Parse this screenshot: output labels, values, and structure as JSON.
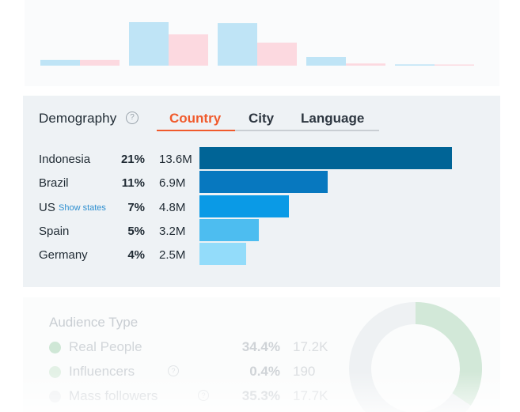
{
  "top_chart": {
    "series_colors": {
      "blue": "#bfe4f6",
      "pink": "#fcd9e0"
    },
    "pairs": [
      {
        "blue": 0.13,
        "pink": 0.13
      },
      {
        "blue": 1.0,
        "pink": 0.72
      },
      {
        "blue": 0.98,
        "pink": 0.53
      },
      {
        "blue": 0.2,
        "pink": 0.05
      },
      {
        "blue": 0.03,
        "pink": 0.02
      }
    ]
  },
  "demography": {
    "title": "Demography",
    "help_icon": "?",
    "tabs": [
      {
        "label": "Country",
        "active": true
      },
      {
        "label": "City",
        "active": false
      },
      {
        "label": "Language",
        "active": false
      }
    ],
    "show_states_label": "Show states",
    "chart_data": {
      "type": "bar",
      "categories": [
        "Indonesia",
        "Brazil",
        "US",
        "Spain",
        "Germany"
      ],
      "percent_labels": [
        "21%",
        "11%",
        "7%",
        "5%",
        "4%"
      ],
      "absolute_labels": [
        "13.6M",
        "6.9M",
        "4.8M",
        "3.2M",
        "2.5M"
      ],
      "values": [
        13.6,
        6.9,
        4.8,
        3.2,
        2.5
      ],
      "colors": [
        "#006496",
        "#0778bf",
        "#0a9ae6",
        "#4dbdf0",
        "#93dcfa"
      ]
    }
  },
  "audience": {
    "title": "Audience Type",
    "rows": [
      {
        "label": "Real People",
        "pct": "34.4%",
        "abs": "17.2K",
        "dot": "#cfe7d6",
        "help": false
      },
      {
        "label": "Influencers",
        "pct": "0.4%",
        "abs": "190",
        "dot": "#e3f1e6",
        "help": true
      },
      {
        "label": "Mass followers",
        "pct": "35.3%",
        "abs": "17.7K",
        "dot": "#eef0f2",
        "help": true
      }
    ],
    "donut_color": "#d2e8d8"
  }
}
